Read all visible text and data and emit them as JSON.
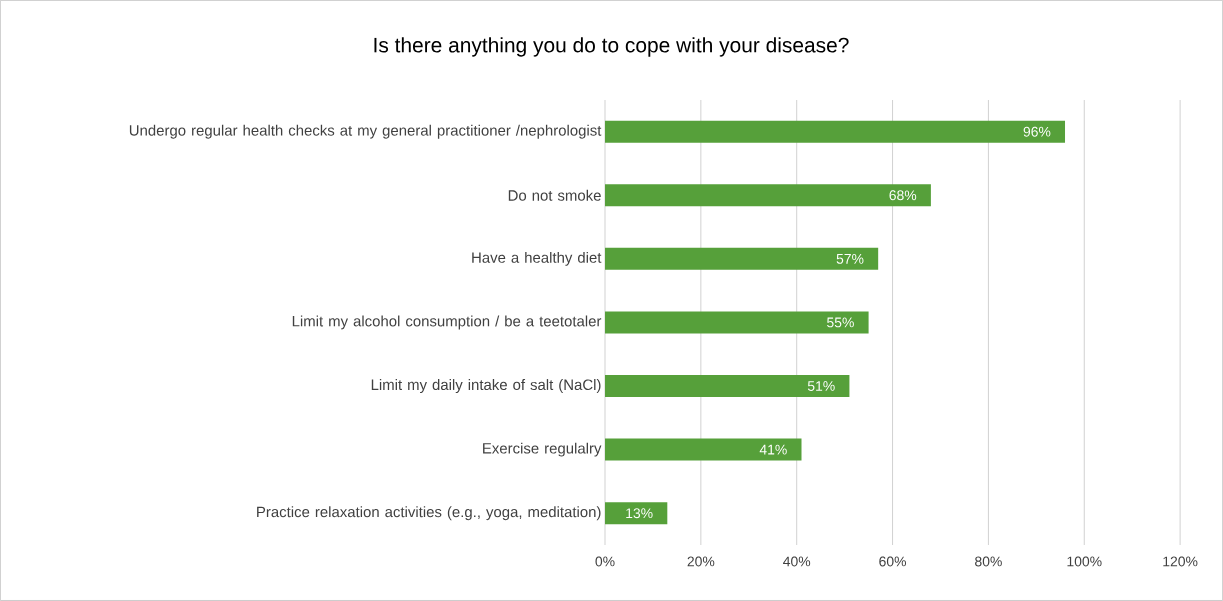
{
  "chart_data": {
    "type": "bar",
    "orientation": "horizontal",
    "title": "Is there anything you do to cope with your disease?",
    "categories": [
      "Undergo regular health checks at my general practitioner /nephrologist",
      "Do not smoke",
      "Have a healthy diet",
      "Limit my alcohol consumption / be a teetotaler",
      "Limit my daily intake of salt (NaCl)",
      "Exercise regulalry",
      "Practice relaxation activities (e.g., yoga, meditation)"
    ],
    "values": [
      96,
      68,
      57,
      55,
      51,
      41,
      13
    ],
    "value_labels": [
      "96%",
      "68%",
      "57%",
      "55%",
      "51%",
      "41%",
      "13%"
    ],
    "color": "#56A03A",
    "xlim": [
      0,
      120
    ],
    "xticks": [
      {
        "value": 0,
        "label": "0%"
      },
      {
        "value": 20,
        "label": "20%"
      },
      {
        "value": 40,
        "label": "40%"
      },
      {
        "value": 60,
        "label": "60%"
      },
      {
        "value": 80,
        "label": "80%"
      },
      {
        "value": 100,
        "label": "100%"
      },
      {
        "value": 120,
        "label": "120%"
      }
    ],
    "grid": "x"
  }
}
